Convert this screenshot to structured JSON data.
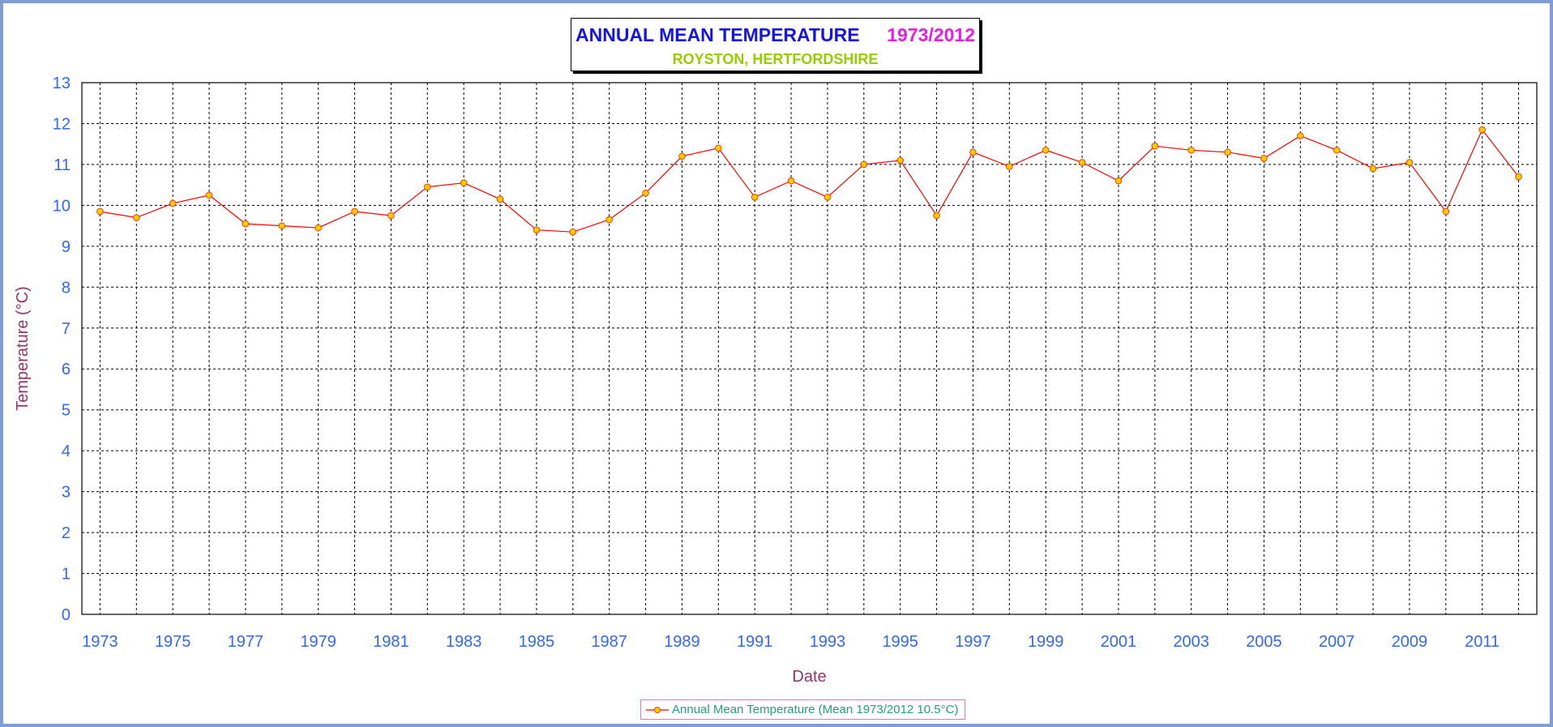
{
  "chart_data": {
    "type": "line",
    "title": "ANNUAL MEAN TEMPERATURE",
    "title_years": "1973/2012",
    "subtitle": "ROYSTON, HERTFORDSHIRE",
    "xlabel": "Date",
    "ylabel": "Temperature (°C)",
    "ylim": [
      0,
      13
    ],
    "xlim": [
      1972.5,
      2012.5
    ],
    "yticks": [
      "0",
      "1",
      "2",
      "3",
      "4",
      "5",
      "6",
      "7",
      "8",
      "9",
      "10",
      "11",
      "12",
      "13"
    ],
    "xticks": [
      "1973",
      "1975",
      "1977",
      "1979",
      "1981",
      "1983",
      "1985",
      "1987",
      "1989",
      "1991",
      "1993",
      "1995",
      "1997",
      "1999",
      "2001",
      "2003",
      "2005",
      "2007",
      "2009",
      "2011"
    ],
    "grid": true,
    "legend_position": "bottom-center",
    "series": [
      {
        "name": "Annual Mean Temperature (Mean 1973/2012 10.5°C)",
        "x": [
          1973,
          1974,
          1975,
          1976,
          1977,
          1978,
          1979,
          1980,
          1981,
          1982,
          1983,
          1984,
          1985,
          1986,
          1987,
          1988,
          1989,
          1990,
          1991,
          1992,
          1993,
          1994,
          1995,
          1996,
          1997,
          1998,
          1999,
          2000,
          2001,
          2002,
          2003,
          2004,
          2005,
          2006,
          2007,
          2008,
          2009,
          2010,
          2011,
          2012
        ],
        "y": [
          9.85,
          9.7,
          10.05,
          10.25,
          9.55,
          9.5,
          9.45,
          9.85,
          9.75,
          10.45,
          10.55,
          10.15,
          9.4,
          9.35,
          9.65,
          10.3,
          11.2,
          11.4,
          10.2,
          10.6,
          10.2,
          11.0,
          11.1,
          9.75,
          11.3,
          10.95,
          11.35,
          11.05,
          10.6,
          11.45,
          11.35,
          11.3,
          11.15,
          11.7,
          11.35,
          10.9,
          11.05,
          9.85,
          11.85,
          10.7
        ]
      }
    ],
    "colors": {
      "line": "#ff0000",
      "marker_fill": "#ffcc00",
      "marker_stroke": "#ff4000",
      "tick_labels": "#3366ff",
      "axis_titles": "#993366",
      "legend_text": "#21a07a"
    }
  }
}
